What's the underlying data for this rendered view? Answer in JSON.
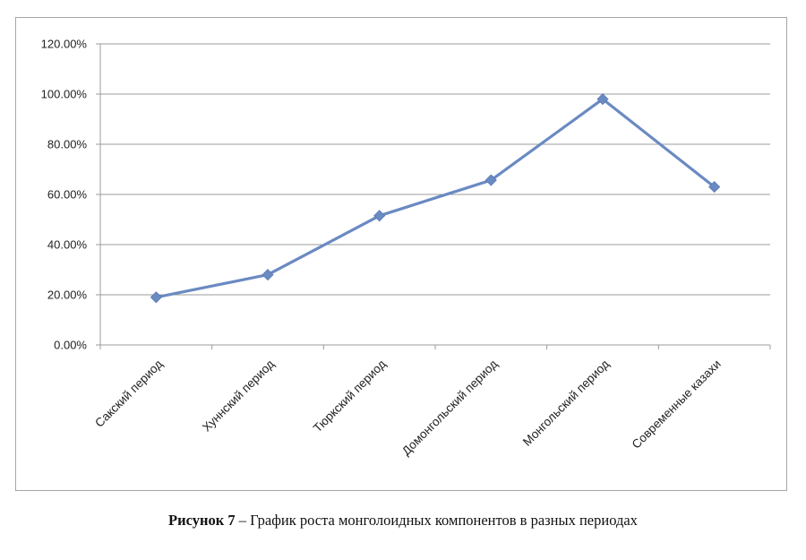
{
  "chart_data": {
    "type": "line",
    "categories": [
      "Сакский период",
      "Хуннский период",
      "Тюркский  период",
      "Домонгольский период",
      "Монгольский период",
      "Современные казахи"
    ],
    "series": [
      {
        "values": [
          0.19,
          0.28,
          0.515,
          0.657,
          0.98,
          0.63
        ]
      }
    ],
    "ylim": [
      0,
      1.2
    ],
    "yticks": [
      0,
      0.2,
      0.4,
      0.6,
      0.8,
      1.0,
      1.2
    ],
    "ytick_labels": [
      "0.00%",
      "20.00%",
      "40.00%",
      "60.00%",
      "80.00%",
      "100.00%",
      "120.00%"
    ],
    "grid": true,
    "legend": "none",
    "line_color": "#6a8ac2",
    "grid_color": "#9b9b9b"
  },
  "caption": {
    "label": "Рисунок 7",
    "text": " – График роста монголоидных компонентов в разных периодах"
  }
}
